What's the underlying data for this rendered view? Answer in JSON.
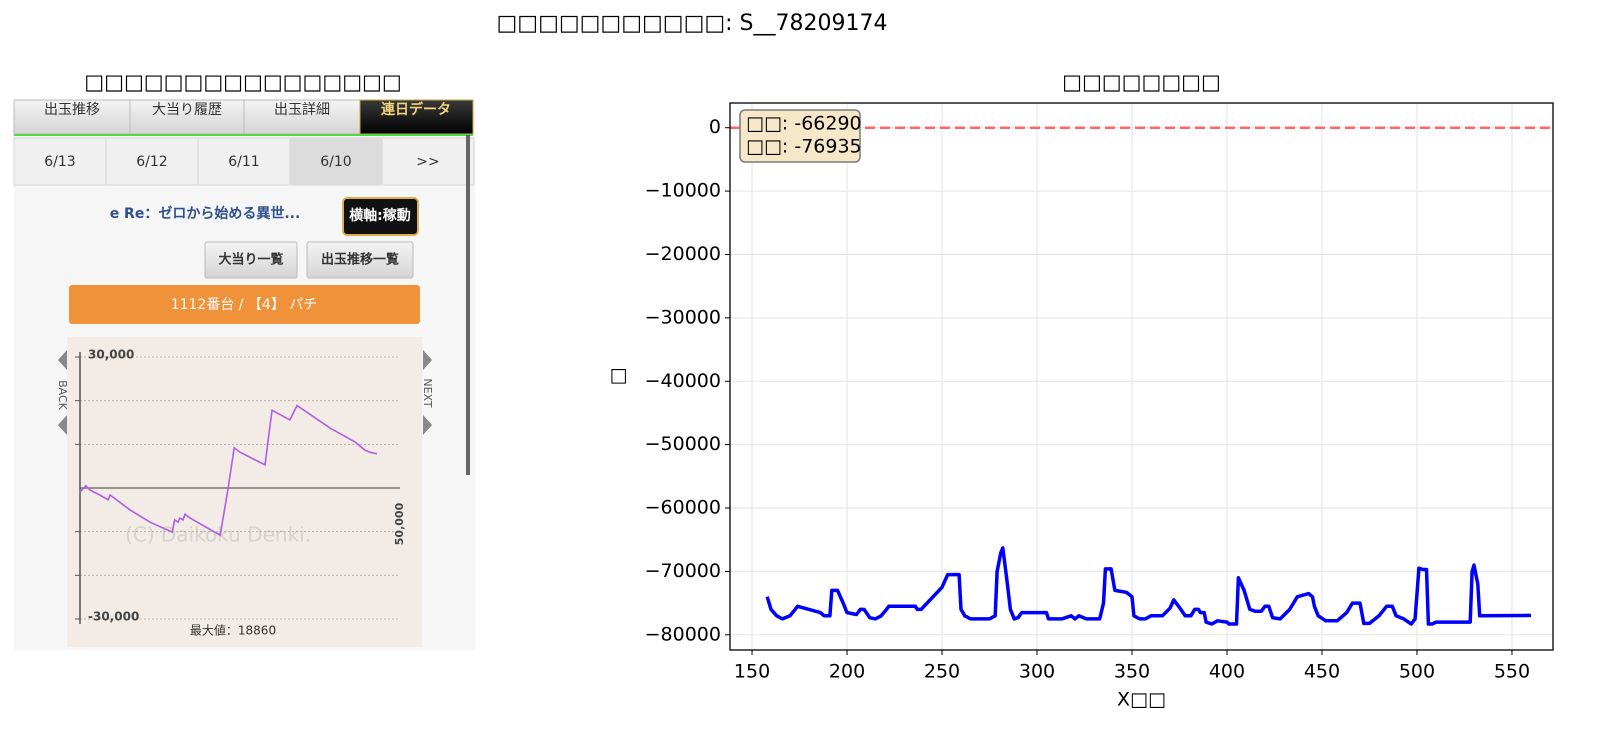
{
  "title": "□□□□□□□□□□□: S__78209174",
  "screenshot": {
    "title": "□□□□□□□□□□□□□□□□",
    "tabs": [
      "出玉推移",
      "大当り履歴",
      "出玉詳細",
      "連日データ"
    ],
    "dates": [
      "6/13",
      "6/12",
      "6/11",
      "6/10",
      ">>"
    ],
    "machine_name": "e Re：ゼロから始める異世...",
    "axis_toggle": "横軸:稼動",
    "buttons": [
      "大当り一覧",
      "出玉推移一覧"
    ],
    "banner": "1112番台 / 【4】 パチ",
    "nav_back": "BACK",
    "nav_next": "NEXT",
    "watermark": "(C) Daikoku Denki.",
    "max_label": "最大値：18860"
  },
  "chart_data": [
    {
      "type": "line",
      "x": [
        0,
        900,
        1600,
        3100,
        4400,
        4700,
        7800,
        10900,
        14400,
        14800,
        15300,
        15600,
        16100,
        16400,
        17200,
        21900,
        23100,
        24100,
        25000,
        28900,
        30000,
        32800,
        33900,
        35900,
        39100,
        43000,
        44500,
        45300,
        46400
      ],
      "values": [
        -900,
        500,
        -500,
        -1600,
        -2700,
        -1600,
        -5000,
        -7800,
        -10100,
        -7300,
        -7800,
        -6900,
        -7300,
        -6000,
        -6900,
        -10800,
        -500,
        9200,
        8200,
        5300,
        17800,
        15600,
        18860,
        16900,
        13700,
        10500,
        8700,
        8200,
        7800
      ],
      "color": "#b25de6",
      "xlim": [
        0,
        50000
      ],
      "xticks": [
        {
          "value": 50000,
          "label": "50,000"
        }
      ],
      "ylim": [
        -30000,
        30000
      ],
      "yticks": [
        {
          "value": 30000,
          "label": "30,000"
        },
        {
          "value": 20000,
          "label": null
        },
        {
          "value": 10000,
          "label": null
        },
        {
          "value": -10000,
          "label": null
        },
        {
          "value": -20000,
          "label": null
        },
        {
          "value": -30000,
          "label": "-30,000"
        }
      ],
      "zero_line": 0
    },
    {
      "type": "line",
      "title": "□□□□□□□□",
      "xlabel": "X□□",
      "ylabel": "□",
      "x": [
        158,
        160,
        163,
        166,
        170,
        174,
        180,
        186,
        188,
        191,
        192,
        195,
        198,
        200,
        205,
        207,
        209,
        212,
        215,
        218,
        220,
        222,
        230,
        236,
        237,
        239,
        250,
        253,
        259,
        260,
        262,
        265,
        270,
        275,
        278,
        279,
        281,
        282,
        284,
        286,
        288,
        290,
        292,
        305,
        306,
        313,
        318,
        320,
        322,
        326,
        333,
        335,
        336,
        339,
        341,
        347,
        350,
        351,
        354,
        357,
        360,
        366,
        370,
        372,
        375,
        378,
        381,
        383,
        385,
        386,
        388,
        389,
        392,
        395,
        400,
        401,
        405,
        406,
        409,
        412,
        415,
        418,
        420,
        422,
        424,
        428,
        433,
        437,
        443,
        445,
        446,
        448,
        452,
        458,
        463,
        466,
        470,
        472,
        475,
        480,
        484,
        487,
        489,
        493,
        497,
        499,
        501,
        503,
        505,
        506,
        508,
        510,
        528,
        529,
        530,
        532,
        533,
        560
      ],
      "values": [
        -74000,
        -76000,
        -77000,
        -77500,
        -77000,
        -75500,
        -76000,
        -76500,
        -77000,
        -77000,
        -73000,
        -73000,
        -75000,
        -76500,
        -76800,
        -76000,
        -76000,
        -77300,
        -77500,
        -77000,
        -76300,
        -75500,
        -75500,
        -75500,
        -76000,
        -76000,
        -72500,
        -70500,
        -70500,
        -76000,
        -77000,
        -77500,
        -77500,
        -77500,
        -77000,
        -70000,
        -67000,
        -66290,
        -71000,
        -76000,
        -77500,
        -77300,
        -76500,
        -76500,
        -77500,
        -77500,
        -77000,
        -77500,
        -77000,
        -77500,
        -77500,
        -75000,
        -69600,
        -69600,
        -73000,
        -73300,
        -74000,
        -77000,
        -77500,
        -77500,
        -77000,
        -77000,
        -75800,
        -74500,
        -75700,
        -77000,
        -77000,
        -76000,
        -76000,
        -76500,
        -76500,
        -78000,
        -78300,
        -77800,
        -78000,
        -78300,
        -78300,
        -71000,
        -73000,
        -76000,
        -76300,
        -76300,
        -75500,
        -75500,
        -77300,
        -77500,
        -76000,
        -74000,
        -73500,
        -74000,
        -75500,
        -77000,
        -77800,
        -77800,
        -76500,
        -75000,
        -75000,
        -78200,
        -78200,
        -77000,
        -75500,
        -75500,
        -77000,
        -77500,
        -78300,
        -77500,
        -69500,
        -69700,
        -69700,
        -78300,
        -78300,
        -78000,
        -78000,
        -70000,
        -69000,
        -72000,
        -77000,
        -76935
      ],
      "color": "#0000ff",
      "reference_line": {
        "value": 0,
        "color": "#ff6666"
      },
      "annotation": [
        "□□: -66290",
        "□□: -76935"
      ],
      "xlim": [
        138.4,
        571.6
      ],
      "xticks": [
        150,
        200,
        250,
        300,
        350,
        400,
        450,
        500,
        550
      ],
      "ylim": [
        -82400,
        3900
      ],
      "yticks": [
        0,
        {
          "value": -10000,
          "label": "−10000"
        },
        {
          "value": -20000,
          "label": "−20000"
        },
        {
          "value": -30000,
          "label": "−30000"
        },
        {
          "value": -40000,
          "label": "−40000"
        },
        {
          "value": -50000,
          "label": "−50000"
        },
        {
          "value": -60000,
          "label": "−60000"
        },
        {
          "value": -70000,
          "label": "−70000"
        },
        {
          "value": -80000,
          "label": "−80000"
        }
      ],
      "grid": true
    }
  ]
}
